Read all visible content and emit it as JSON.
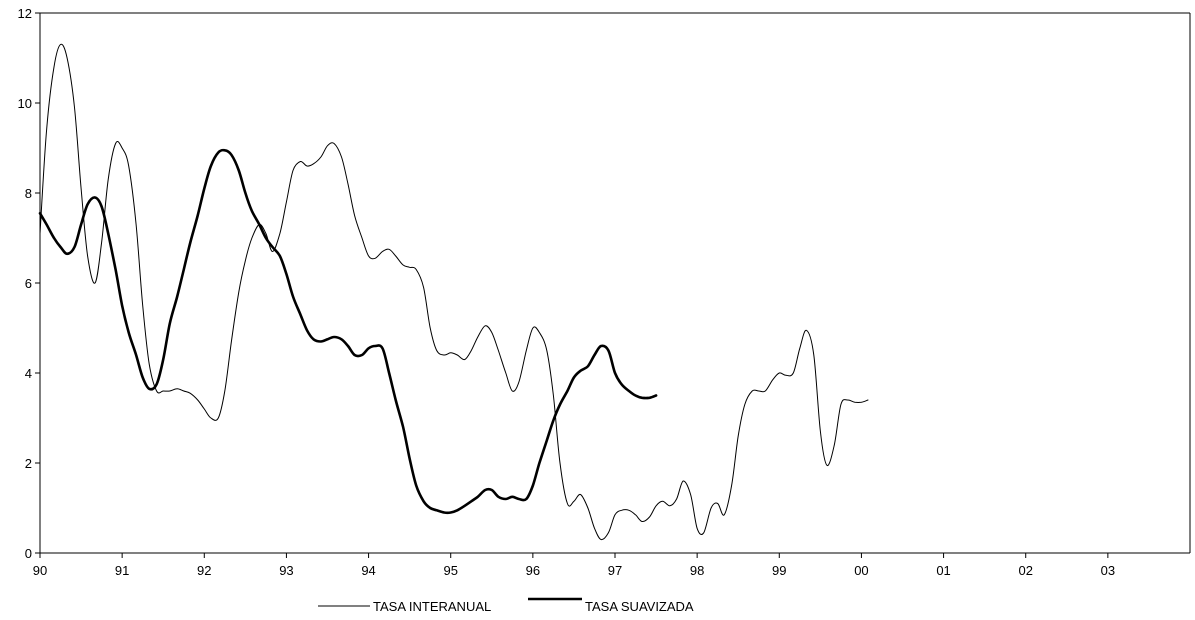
{
  "chart_data": {
    "type": "line",
    "title": "",
    "xlabel": "",
    "ylabel": "",
    "xlim": [
      1990,
      2004
    ],
    "ylim": [
      0,
      12
    ],
    "x_tick_values": [
      1990,
      1991,
      1992,
      1993,
      1994,
      1995,
      1996,
      1997,
      1998,
      1999,
      2000,
      2001,
      2002,
      2003
    ],
    "x_tick_labels": [
      "90",
      "91",
      "92",
      "93",
      "94",
      "95",
      "96",
      "97",
      "98",
      "99",
      "00",
      "01",
      "02",
      "03"
    ],
    "y_ticks": [
      0,
      2,
      4,
      6,
      8,
      10,
      12
    ],
    "grid": false,
    "legend_position": "bottom-center",
    "series": [
      {
        "name": "TASA INTERANUAL",
        "stroke": "#000000",
        "weight": "thin",
        "points": [
          [
            1990.0,
            7.1
          ],
          [
            1990.08,
            9.4
          ],
          [
            1990.17,
            10.8
          ],
          [
            1990.25,
            11.3
          ],
          [
            1990.33,
            11.0
          ],
          [
            1990.42,
            9.9
          ],
          [
            1990.5,
            8.1
          ],
          [
            1990.58,
            6.6
          ],
          [
            1990.67,
            6.0
          ],
          [
            1990.75,
            6.9
          ],
          [
            1990.83,
            8.3
          ],
          [
            1990.92,
            9.1
          ],
          [
            1991.0,
            9.0
          ],
          [
            1991.08,
            8.6
          ],
          [
            1991.17,
            7.3
          ],
          [
            1991.25,
            5.5
          ],
          [
            1991.33,
            4.2
          ],
          [
            1991.42,
            3.6
          ],
          [
            1991.5,
            3.6
          ],
          [
            1991.58,
            3.6
          ],
          [
            1991.67,
            3.65
          ],
          [
            1991.75,
            3.6
          ],
          [
            1991.83,
            3.55
          ],
          [
            1991.92,
            3.4
          ],
          [
            1992.0,
            3.2
          ],
          [
            1992.08,
            3.0
          ],
          [
            1992.17,
            3.0
          ],
          [
            1992.25,
            3.6
          ],
          [
            1992.33,
            4.7
          ],
          [
            1992.42,
            5.8
          ],
          [
            1992.5,
            6.5
          ],
          [
            1992.58,
            7.0
          ],
          [
            1992.67,
            7.3
          ],
          [
            1992.75,
            7.1
          ],
          [
            1992.83,
            6.7
          ],
          [
            1992.92,
            7.1
          ],
          [
            1993.0,
            7.8
          ],
          [
            1993.08,
            8.5
          ],
          [
            1993.17,
            8.7
          ],
          [
            1993.25,
            8.6
          ],
          [
            1993.33,
            8.65
          ],
          [
            1993.42,
            8.8
          ],
          [
            1993.5,
            9.05
          ],
          [
            1993.58,
            9.1
          ],
          [
            1993.67,
            8.8
          ],
          [
            1993.75,
            8.2
          ],
          [
            1993.83,
            7.5
          ],
          [
            1993.92,
            7.0
          ],
          [
            1994.0,
            6.6
          ],
          [
            1994.08,
            6.55
          ],
          [
            1994.17,
            6.7
          ],
          [
            1994.25,
            6.75
          ],
          [
            1994.33,
            6.6
          ],
          [
            1994.42,
            6.4
          ],
          [
            1994.5,
            6.35
          ],
          [
            1994.58,
            6.3
          ],
          [
            1994.67,
            5.9
          ],
          [
            1994.75,
            5.0
          ],
          [
            1994.83,
            4.5
          ],
          [
            1994.92,
            4.4
          ],
          [
            1995.0,
            4.45
          ],
          [
            1995.08,
            4.4
          ],
          [
            1995.17,
            4.3
          ],
          [
            1995.25,
            4.5
          ],
          [
            1995.33,
            4.8
          ],
          [
            1995.42,
            5.05
          ],
          [
            1995.5,
            4.9
          ],
          [
            1995.58,
            4.5
          ],
          [
            1995.67,
            4.0
          ],
          [
            1995.75,
            3.6
          ],
          [
            1995.83,
            3.8
          ],
          [
            1995.92,
            4.5
          ],
          [
            1996.0,
            5.0
          ],
          [
            1996.08,
            4.9
          ],
          [
            1996.17,
            4.5
          ],
          [
            1996.25,
            3.5
          ],
          [
            1996.33,
            2.0
          ],
          [
            1996.42,
            1.1
          ],
          [
            1996.5,
            1.15
          ],
          [
            1996.58,
            1.3
          ],
          [
            1996.67,
            1.0
          ],
          [
            1996.75,
            0.55
          ],
          [
            1996.83,
            0.3
          ],
          [
            1996.92,
            0.45
          ],
          [
            1997.0,
            0.85
          ],
          [
            1997.08,
            0.95
          ],
          [
            1997.17,
            0.95
          ],
          [
            1997.25,
            0.85
          ],
          [
            1997.33,
            0.7
          ],
          [
            1997.42,
            0.8
          ],
          [
            1997.5,
            1.05
          ],
          [
            1997.58,
            1.15
          ],
          [
            1997.67,
            1.05
          ],
          [
            1997.75,
            1.2
          ],
          [
            1997.83,
            1.6
          ],
          [
            1997.92,
            1.3
          ],
          [
            1998.0,
            0.55
          ],
          [
            1998.08,
            0.45
          ],
          [
            1998.17,
            1.0
          ],
          [
            1998.25,
            1.1
          ],
          [
            1998.33,
            0.85
          ],
          [
            1998.42,
            1.5
          ],
          [
            1998.5,
            2.6
          ],
          [
            1998.58,
            3.3
          ],
          [
            1998.67,
            3.6
          ],
          [
            1998.75,
            3.6
          ],
          [
            1998.83,
            3.6
          ],
          [
            1998.92,
            3.85
          ],
          [
            1999.0,
            4.0
          ],
          [
            1999.08,
            3.95
          ],
          [
            1999.17,
            4.0
          ],
          [
            1999.25,
            4.55
          ],
          [
            1999.33,
            4.95
          ],
          [
            1999.42,
            4.4
          ],
          [
            1999.5,
            2.7
          ],
          [
            1999.58,
            1.95
          ],
          [
            1999.67,
            2.4
          ],
          [
            1999.75,
            3.3
          ],
          [
            1999.83,
            3.4
          ],
          [
            1999.92,
            3.35
          ],
          [
            2000.0,
            3.35
          ],
          [
            2000.08,
            3.4
          ]
        ]
      },
      {
        "name": "TASA SUAVIZADA",
        "stroke": "#000000",
        "weight": "thick",
        "points": [
          [
            1990.0,
            7.55
          ],
          [
            1990.08,
            7.3
          ],
          [
            1990.17,
            7.0
          ],
          [
            1990.25,
            6.8
          ],
          [
            1990.33,
            6.65
          ],
          [
            1990.42,
            6.8
          ],
          [
            1990.5,
            7.3
          ],
          [
            1990.58,
            7.75
          ],
          [
            1990.67,
            7.9
          ],
          [
            1990.75,
            7.7
          ],
          [
            1990.83,
            7.1
          ],
          [
            1990.92,
            6.3
          ],
          [
            1991.0,
            5.5
          ],
          [
            1991.08,
            4.9
          ],
          [
            1991.17,
            4.4
          ],
          [
            1991.25,
            3.9
          ],
          [
            1991.33,
            3.65
          ],
          [
            1991.42,
            3.75
          ],
          [
            1991.5,
            4.3
          ],
          [
            1991.58,
            5.1
          ],
          [
            1991.67,
            5.7
          ],
          [
            1991.75,
            6.3
          ],
          [
            1991.83,
            6.9
          ],
          [
            1991.92,
            7.5
          ],
          [
            1992.0,
            8.1
          ],
          [
            1992.08,
            8.6
          ],
          [
            1992.17,
            8.9
          ],
          [
            1992.25,
            8.95
          ],
          [
            1992.33,
            8.85
          ],
          [
            1992.42,
            8.5
          ],
          [
            1992.5,
            8.0
          ],
          [
            1992.58,
            7.6
          ],
          [
            1992.67,
            7.3
          ],
          [
            1992.75,
            7.0
          ],
          [
            1992.83,
            6.8
          ],
          [
            1992.92,
            6.6
          ],
          [
            1993.0,
            6.2
          ],
          [
            1993.08,
            5.7
          ],
          [
            1993.17,
            5.3
          ],
          [
            1993.25,
            4.95
          ],
          [
            1993.33,
            4.75
          ],
          [
            1993.42,
            4.7
          ],
          [
            1993.5,
            4.75
          ],
          [
            1993.58,
            4.8
          ],
          [
            1993.67,
            4.75
          ],
          [
            1993.75,
            4.6
          ],
          [
            1993.83,
            4.4
          ],
          [
            1993.92,
            4.4
          ],
          [
            1994.0,
            4.55
          ],
          [
            1994.08,
            4.6
          ],
          [
            1994.17,
            4.55
          ],
          [
            1994.25,
            4.0
          ],
          [
            1994.33,
            3.4
          ],
          [
            1994.42,
            2.8
          ],
          [
            1994.5,
            2.1
          ],
          [
            1994.58,
            1.5
          ],
          [
            1994.67,
            1.15
          ],
          [
            1994.75,
            1.0
          ],
          [
            1994.83,
            0.95
          ],
          [
            1994.92,
            0.9
          ],
          [
            1995.0,
            0.9
          ],
          [
            1995.08,
            0.95
          ],
          [
            1995.17,
            1.05
          ],
          [
            1995.25,
            1.15
          ],
          [
            1995.33,
            1.25
          ],
          [
            1995.42,
            1.4
          ],
          [
            1995.5,
            1.4
          ],
          [
            1995.58,
            1.25
          ],
          [
            1995.67,
            1.2
          ],
          [
            1995.75,
            1.25
          ],
          [
            1995.83,
            1.2
          ],
          [
            1995.92,
            1.2
          ],
          [
            1996.0,
            1.5
          ],
          [
            1996.08,
            2.0
          ],
          [
            1996.17,
            2.5
          ],
          [
            1996.25,
            2.95
          ],
          [
            1996.33,
            3.3
          ],
          [
            1996.42,
            3.6
          ],
          [
            1996.5,
            3.9
          ],
          [
            1996.58,
            4.05
          ],
          [
            1996.67,
            4.15
          ],
          [
            1996.75,
            4.4
          ],
          [
            1996.83,
            4.6
          ],
          [
            1996.92,
            4.5
          ],
          [
            1997.0,
            4.0
          ],
          [
            1997.08,
            3.75
          ],
          [
            1997.17,
            3.6
          ],
          [
            1997.25,
            3.5
          ],
          [
            1997.33,
            3.45
          ],
          [
            1997.42,
            3.45
          ],
          [
            1997.5,
            3.5
          ]
        ]
      }
    ]
  }
}
